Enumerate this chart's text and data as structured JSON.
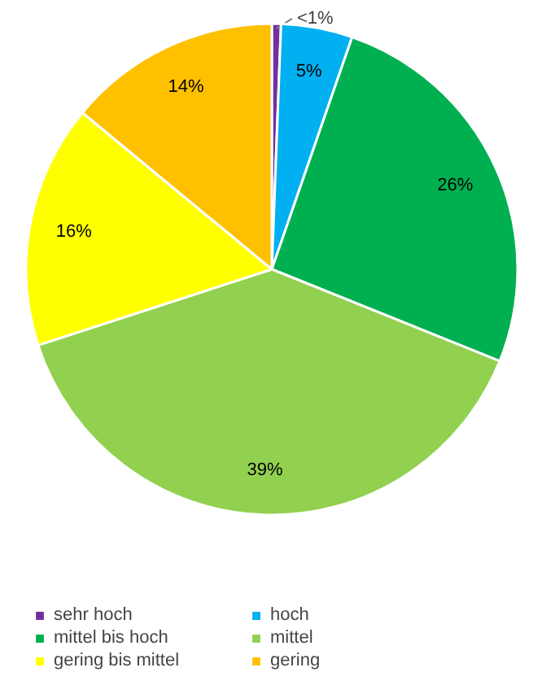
{
  "chart_data": {
    "type": "pie",
    "categories": [
      "sehr hoch",
      "hoch",
      "mittel bis hoch",
      "mittel",
      "gering bis mittel",
      "gering"
    ],
    "values": [
      0.6,
      4.7,
      25.8,
      38.9,
      16.0,
      14.0
    ],
    "value_labels": [
      "<1%",
      "5%",
      "26%",
      "39%",
      "16%",
      "14%"
    ],
    "colors": [
      "#7030a0",
      "#00b0f0",
      "#00b050",
      "#92d050",
      "#ffff00",
      "#ffc000"
    ],
    "legend": "bottom"
  }
}
